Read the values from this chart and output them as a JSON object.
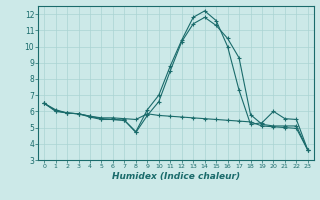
{
  "xlabel": "Humidex (Indice chaleur)",
  "xlim": [
    -0.5,
    23.5
  ],
  "ylim": [
    3,
    12.5
  ],
  "yticks": [
    3,
    4,
    5,
    6,
    7,
    8,
    9,
    10,
    11,
    12
  ],
  "xticks": [
    0,
    1,
    2,
    3,
    4,
    5,
    6,
    7,
    8,
    9,
    10,
    11,
    12,
    13,
    14,
    15,
    16,
    17,
    18,
    19,
    20,
    21,
    22,
    23
  ],
  "bg_color": "#cce9e8",
  "line_color": "#1a6b6b",
  "grid_color": "#aad4d3",
  "line1_y": [
    6.5,
    6.1,
    5.9,
    5.85,
    5.7,
    5.55,
    5.5,
    5.45,
    4.75,
    6.1,
    7.0,
    8.8,
    10.4,
    11.8,
    12.2,
    11.6,
    10.0,
    7.3,
    5.2,
    5.3,
    6.0,
    5.55,
    5.5,
    3.6
  ],
  "line2_y": [
    6.5,
    6.05,
    5.9,
    5.85,
    5.65,
    5.5,
    5.5,
    5.45,
    4.7,
    5.75,
    6.6,
    8.5,
    10.3,
    11.4,
    11.8,
    11.3,
    10.5,
    9.3,
    5.8,
    5.2,
    5.1,
    5.1,
    5.1,
    3.6
  ],
  "line3_y": [
    6.5,
    6.0,
    5.9,
    5.85,
    5.7,
    5.6,
    5.6,
    5.55,
    5.5,
    5.85,
    5.75,
    5.7,
    5.65,
    5.6,
    5.55,
    5.5,
    5.45,
    5.4,
    5.35,
    5.1,
    5.05,
    5.0,
    4.95,
    3.6
  ]
}
